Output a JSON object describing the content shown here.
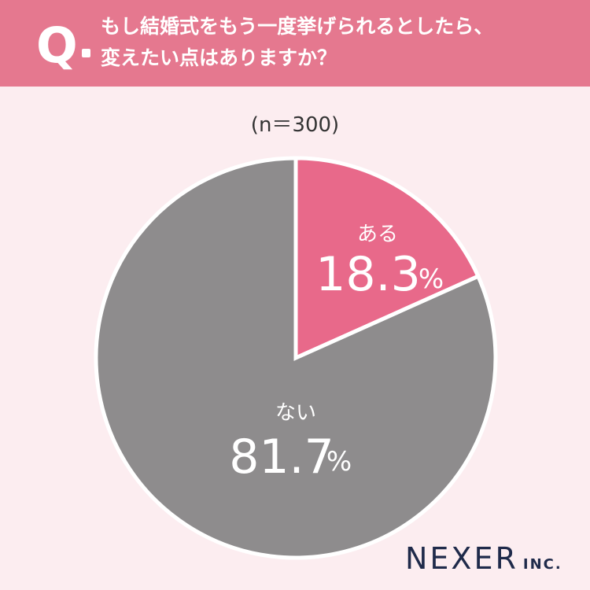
{
  "question": {
    "mark": "Q",
    "lines": [
      "もし結婚式をもう一度挙げられるとしたら、",
      "変えたい点はありますか？"
    ]
  },
  "sample_label": "(n＝300)",
  "logo": {
    "main": "NEXER",
    "suffix": "INC."
  },
  "colors": {
    "header": "#e5788f",
    "background": "#fcedf0",
    "aru": "#e8698a",
    "nai": "#8e8c8d"
  },
  "chart_data": {
    "type": "pie",
    "slices": [
      {
        "label": "ある",
        "value": 18.3,
        "display": "18.3",
        "unit": "%",
        "color": "#e8698a"
      },
      {
        "label": "ない",
        "value": 81.7,
        "display": "81.7",
        "unit": "%",
        "color": "#8e8c8d"
      }
    ],
    "start_angle": "12 o'clock",
    "direction": "clockwise"
  }
}
